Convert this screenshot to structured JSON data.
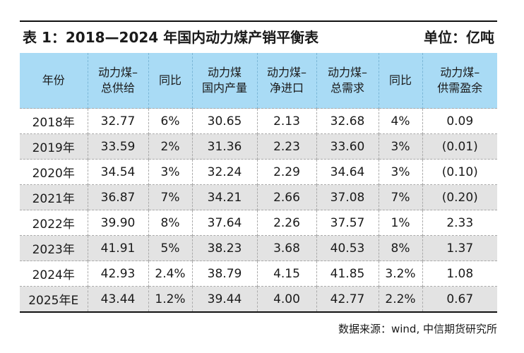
{
  "header": {
    "title": "表 1：2018—2024 年国内动力煤产销平衡表",
    "unit": "单位：亿吨"
  },
  "table": {
    "columns": [
      [
        "年份"
      ],
      [
        "动力煤–",
        "总供给"
      ],
      [
        "同比"
      ],
      [
        "动力煤",
        "国内产量"
      ],
      [
        "动力煤–",
        "净进口"
      ],
      [
        "动力煤–",
        "总需求"
      ],
      [
        "同比"
      ],
      [
        "动力煤–",
        "供需盈余"
      ]
    ],
    "rows": [
      [
        "2018年",
        "32.77",
        "6%",
        "30.65",
        "2.13",
        "32.68",
        "4%",
        "0.09"
      ],
      [
        "2019年",
        "33.59",
        "2%",
        "31.36",
        "2.23",
        "33.60",
        "3%",
        "(0.01)"
      ],
      [
        "2020年",
        "34.54",
        "3%",
        "32.24",
        "2.29",
        "34.64",
        "3%",
        "(0.10)"
      ],
      [
        "2021年",
        "36.87",
        "7%",
        "34.21",
        "2.66",
        "37.08",
        "7%",
        "(0.20)"
      ],
      [
        "2022年",
        "39.90",
        "8%",
        "37.64",
        "2.26",
        "37.57",
        "1%",
        "2.33"
      ],
      [
        "2023年",
        "41.91",
        "5%",
        "38.23",
        "3.68",
        "40.53",
        "8%",
        "1.37"
      ],
      [
        "2024年",
        "42.93",
        "2.4%",
        "38.79",
        "4.15",
        "41.85",
        "3.2%",
        "1.08"
      ],
      [
        "2025年E",
        "43.44",
        "1.2%",
        "39.44",
        "4.00",
        "42.77",
        "2.2%",
        "0.67"
      ]
    ]
  },
  "footer": {
    "source": "数据来源：wind, 中信期货研究所"
  }
}
